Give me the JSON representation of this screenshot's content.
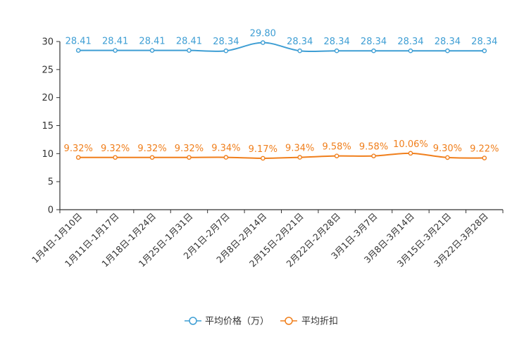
{
  "chart_data": {
    "type": "line",
    "title": "",
    "xlabel": "",
    "ylabel": "",
    "ylim": [
      0,
      30
    ],
    "yticks": [
      0,
      5,
      10,
      15,
      20,
      25,
      30
    ],
    "ytick_labels": [
      "0",
      "5",
      "10",
      "15",
      "20",
      "25",
      "30"
    ],
    "categories": [
      "1月4日-1月10日",
      "1月11日-1月17日",
      "1月18日-1月24日",
      "1月25日-1月31日",
      "2月1日-2月7日",
      "2月8日-2月14日",
      "2月15日-2月21日",
      "2月22日-2月28日",
      "3月1日-3月7日",
      "3月8日-3月14日",
      "3月15日-3月21日",
      "3月22日-3月28日"
    ],
    "series": [
      {
        "name": "平均价格（万）",
        "color": "#3e9ed4",
        "values": [
          28.41,
          28.41,
          28.41,
          28.41,
          28.34,
          29.8,
          28.34,
          28.34,
          28.34,
          28.34,
          28.34,
          28.34
        ],
        "labels": [
          "28.41",
          "28.41",
          "28.41",
          "28.41",
          "28.34",
          "29.80",
          "28.34",
          "28.34",
          "28.34",
          "28.34",
          "28.34",
          "28.34"
        ]
      },
      {
        "name": "平均折扣",
        "color": "#f07f1c",
        "values": [
          9.32,
          9.32,
          9.32,
          9.32,
          9.34,
          9.17,
          9.34,
          9.58,
          9.58,
          10.06,
          9.3,
          9.22
        ],
        "labels": [
          "9.32%",
          "9.32%",
          "9.32%",
          "9.32%",
          "9.34%",
          "9.17%",
          "9.34%",
          "9.58%",
          "9.58%",
          "10.06%",
          "9.30%",
          "9.22%"
        ]
      }
    ],
    "legend_position": "bottom-center"
  }
}
